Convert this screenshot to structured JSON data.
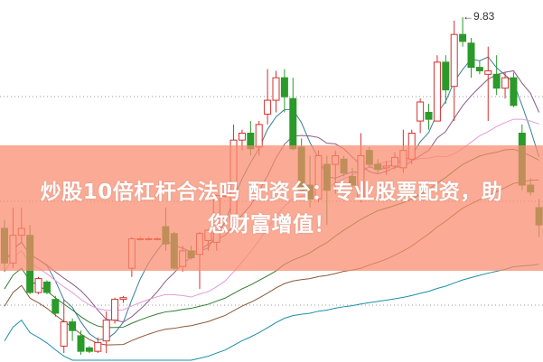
{
  "banner": {
    "line1": "炒股10倍杠杆合法吗 配资台：专业股票配资，助",
    "line2": "您财富增值！"
  },
  "chart_data": {
    "type": "candlestick",
    "grid": "horizontal dotted",
    "high_annotation": "9.83",
    "colors": {
      "up": "#d62f2f",
      "down": "#2a9a2a",
      "ma5": "#3a7f9a",
      "ma10": "#8a5a8a",
      "ma20": "#e59ad8",
      "ma30": "#2e7d32",
      "ma60": "#1c8fa8",
      "ma120": "#8a5a3a"
    },
    "candles": [
      [
        8.61,
        8.66,
        8.36,
        8.41
      ],
      [
        8.41,
        8.73,
        8.38,
        8.57
      ],
      [
        8.57,
        8.73,
        8.53,
        8.61
      ],
      [
        8.57,
        8.63,
        8.23,
        8.24
      ],
      [
        8.24,
        8.33,
        8.23,
        8.32
      ],
      [
        8.3,
        8.31,
        8.23,
        8.24
      ],
      [
        8.2,
        8.22,
        8.1,
        8.12
      ],
      [
        7.93,
        8.2,
        7.89,
        8.07
      ],
      [
        8.07,
        8.09,
        7.96,
        8.02
      ],
      [
        7.99,
        8.02,
        7.88,
        7.9
      ],
      [
        7.92,
        7.93,
        7.89,
        7.9
      ],
      [
        7.9,
        7.98,
        7.89,
        7.95
      ],
      [
        7.96,
        8.13,
        7.89,
        8.08
      ],
      [
        8.08,
        8.21,
        8.06,
        8.2
      ],
      [
        8.2,
        8.22,
        8.18,
        8.21
      ],
      [
        8.38,
        8.56,
        8.33,
        8.55
      ],
      [
        8.55,
        8.56,
        8.54,
        8.55
      ],
      [
        8.55,
        8.56,
        8.54,
        8.55
      ],
      [
        8.55,
        8.56,
        8.54,
        8.55
      ],
      [
        8.62,
        8.73,
        8.48,
        8.52
      ],
      [
        8.58,
        8.59,
        8.37,
        8.38
      ],
      [
        8.39,
        8.51,
        8.36,
        8.48
      ],
      [
        8.48,
        8.51,
        8.43,
        8.44
      ],
      [
        8.46,
        8.59,
        8.26,
        8.58
      ],
      [
        8.54,
        8.6,
        8.48,
        8.6
      ],
      [
        8.53,
        8.8,
        8.48,
        8.8
      ],
      [
        8.8,
        8.81,
        8.79,
        8.8
      ],
      [
        8.66,
        9.21,
        8.63,
        9.12
      ],
      [
        9.12,
        9.18,
        9.06,
        9.16
      ],
      [
        9.16,
        9.23,
        9.03,
        9.07
      ],
      [
        9.08,
        9.23,
        9.03,
        9.21
      ],
      [
        9.27,
        9.53,
        9.21,
        9.35
      ],
      [
        9.35,
        9.52,
        9.28,
        9.48
      ],
      [
        9.48,
        9.53,
        9.28,
        9.37
      ],
      [
        9.36,
        9.48,
        9.06,
        9.07
      ],
      [
        9.08,
        9.13,
        8.81,
        8.83
      ],
      [
        8.86,
        9.03,
        8.73,
        8.78
      ],
      [
        8.78,
        9.06,
        8.76,
        9.03
      ],
      [
        8.98,
        9.03,
        8.63,
        8.83
      ],
      [
        8.98,
        9.06,
        8.81,
        9.03
      ],
      [
        9.01,
        9.03,
        8.91,
        8.93
      ],
      [
        8.91,
        8.96,
        8.83,
        8.86
      ],
      [
        8.78,
        9.16,
        8.76,
        9.03
      ],
      [
        9.06,
        9.08,
        8.96,
        8.98
      ],
      [
        8.98,
        9.01,
        8.93,
        8.95
      ],
      [
        8.96,
        9.0,
        8.92,
        8.97
      ],
      [
        8.97,
        9.05,
        8.95,
        9.02
      ],
      [
        8.96,
        9.18,
        8.93,
        9.06
      ],
      [
        9.01,
        9.18,
        8.98,
        9.16
      ],
      [
        9.23,
        9.36,
        9.16,
        9.34
      ],
      [
        9.28,
        9.33,
        9.18,
        9.24
      ],
      [
        9.23,
        9.61,
        9.23,
        9.57
      ],
      [
        9.57,
        9.61,
        9.33,
        9.41
      ],
      [
        9.43,
        9.81,
        9.23,
        9.73
      ],
      [
        9.73,
        9.83,
        9.66,
        9.69
      ],
      [
        9.68,
        9.71,
        9.48,
        9.54
      ],
      [
        9.54,
        9.58,
        9.5,
        9.52
      ],
      [
        9.5,
        9.66,
        9.23,
        9.52
      ],
      [
        9.5,
        9.61,
        9.38,
        9.42
      ],
      [
        9.42,
        9.51,
        9.36,
        9.48
      ],
      [
        9.48,
        9.51,
        9.31,
        9.32
      ],
      [
        9.16,
        9.21,
        8.83,
        8.86
      ],
      [
        8.86,
        8.9,
        8.8,
        8.82
      ],
      [
        8.73,
        8.78,
        8.56,
        8.63
      ]
    ]
  }
}
